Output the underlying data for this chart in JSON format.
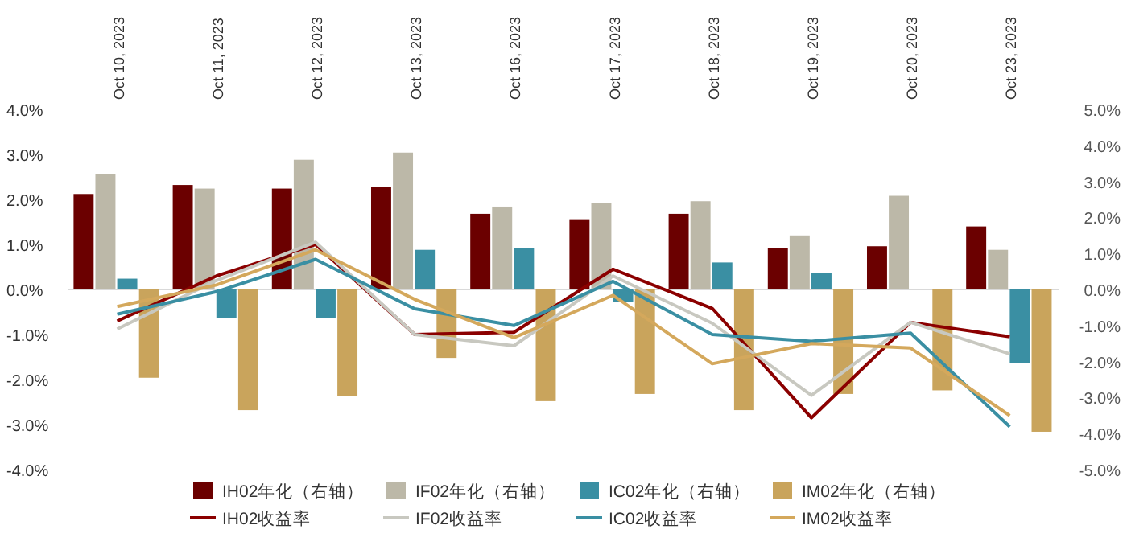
{
  "chart_data": {
    "type": "bar",
    "categories": [
      "Oct 10, 2023",
      "Oct 11, 2023",
      "Oct 12, 2023",
      "Oct 13, 2023",
      "Oct 16, 2023",
      "Oct 17, 2023",
      "Oct 18, 2023",
      "Oct 19, 2023",
      "Oct 20, 2023",
      "Oct 23, 2023"
    ],
    "series": [
      {
        "name": "IH02年化（右轴）",
        "axis": "y2",
        "color": "#6b0000",
        "values": [
          2.65,
          2.9,
          2.8,
          2.85,
          2.1,
          1.95,
          2.1,
          1.15,
          1.2,
          1.75
        ]
      },
      {
        "name": "IF02年化（右轴）",
        "axis": "y2",
        "color": "#bcb8a8",
        "values": [
          3.2,
          2.8,
          3.6,
          3.8,
          2.3,
          2.4,
          2.45,
          1.5,
          2.6,
          1.1
        ]
      },
      {
        "name": "IC02年化（右轴）",
        "axis": "y2",
        "color": "#3a8fa3",
        "values": [
          0.3,
          -0.8,
          -0.8,
          1.1,
          1.15,
          -0.35,
          0.75,
          0.45,
          null,
          -2.05
        ]
      },
      {
        "name": "IM02年化（右轴）",
        "axis": "y2",
        "color": "#c9a45c",
        "values": [
          -2.45,
          -3.35,
          -2.95,
          -1.9,
          -3.1,
          -2.9,
          -3.35,
          -2.9,
          -2.8,
          -3.95
        ]
      },
      {
        "name": "IH02收益率",
        "type": "line",
        "color": "#8b0000",
        "values": [
          -0.7,
          0.3,
          1.0,
          -1.0,
          -0.95,
          0.45,
          -0.42,
          -2.85,
          -0.73,
          -1.05
        ]
      },
      {
        "name": "IF02收益率",
        "type": "line",
        "color": "#c8c8c0",
        "values": [
          -0.88,
          0.2,
          1.05,
          -1.0,
          -1.25,
          0.3,
          -0.75,
          -2.35,
          -0.73,
          -1.43
        ]
      },
      {
        "name": "IC02收益率",
        "type": "line",
        "color": "#3a8fa3",
        "values": [
          -0.55,
          -0.05,
          0.67,
          -0.43,
          -0.8,
          0.18,
          -1.0,
          -1.15,
          -0.97,
          -3.05
        ]
      },
      {
        "name": "IM02收益率",
        "type": "line",
        "color": "#d4a85c",
        "values": [
          -0.38,
          0.1,
          0.88,
          -0.22,
          -1.07,
          -0.13,
          -1.65,
          -1.2,
          -1.3,
          -2.8
        ]
      }
    ],
    "ylim": [
      -4,
      4
    ],
    "yticks": [
      {
        "value": 4,
        "label": "4.0%"
      },
      {
        "value": 3,
        "label": "3.0%"
      },
      {
        "value": 2,
        "label": "2.0%"
      },
      {
        "value": 1,
        "label": "1.0%"
      },
      {
        "value": 0,
        "label": "0.0%"
      },
      {
        "value": -1,
        "label": "-1.0%"
      },
      {
        "value": -2,
        "label": "-2.0%"
      },
      {
        "value": -3,
        "label": "-3.0%"
      },
      {
        "value": -4,
        "label": "-4.0%"
      }
    ],
    "y2lim": [
      -5,
      5
    ],
    "y2ticks": [
      {
        "value": 5,
        "label": "5.0%"
      },
      {
        "value": 4,
        "label": "4.0%"
      },
      {
        "value": 3,
        "label": "3.0%"
      },
      {
        "value": 2,
        "label": "2.0%"
      },
      {
        "value": 1,
        "label": "1.0%"
      },
      {
        "value": 0,
        "label": "0.0%"
      },
      {
        "value": -1,
        "label": "-1.0%"
      },
      {
        "value": -2,
        "label": "-2.0%"
      },
      {
        "value": -3,
        "label": "-3.0%"
      },
      {
        "value": -4,
        "label": "-4.0%"
      },
      {
        "value": -5,
        "label": "-5.0%"
      }
    ],
    "legend": "bottom"
  }
}
